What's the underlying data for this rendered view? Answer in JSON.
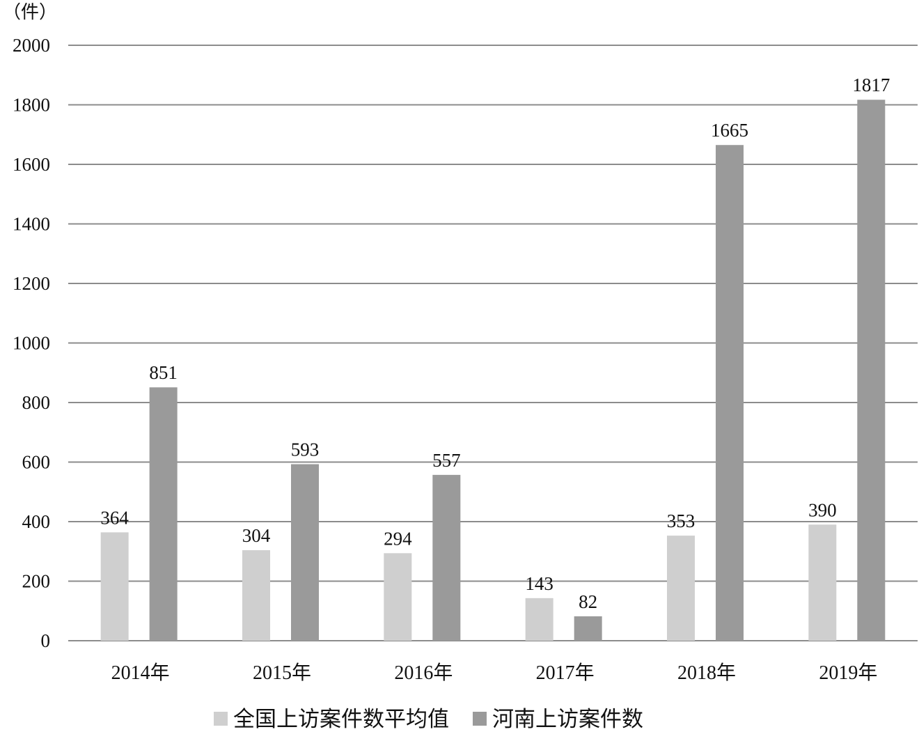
{
  "chart_data": {
    "type": "bar",
    "unit": "（件）",
    "categories": [
      "2014年",
      "2015年",
      "2016年",
      "2017年",
      "2018年",
      "2019年"
    ],
    "series": [
      {
        "name": "全国上访案件数平均值",
        "color": "#cfcfcf",
        "values": [
          364,
          304,
          294,
          143,
          353,
          390
        ]
      },
      {
        "name": "河南上访案件数",
        "color": "#9a9a9a",
        "values": [
          851,
          593,
          557,
          82,
          1665,
          1817
        ]
      }
    ],
    "ylim": [
      0,
      2000
    ],
    "yticks": [
      "0",
      "200",
      "400",
      "600",
      "800",
      "1000",
      "1200",
      "1400",
      "1600",
      "1800",
      "2000"
    ],
    "grid": true,
    "gridColor": "#8c8c8c",
    "legend": "bottom"
  }
}
